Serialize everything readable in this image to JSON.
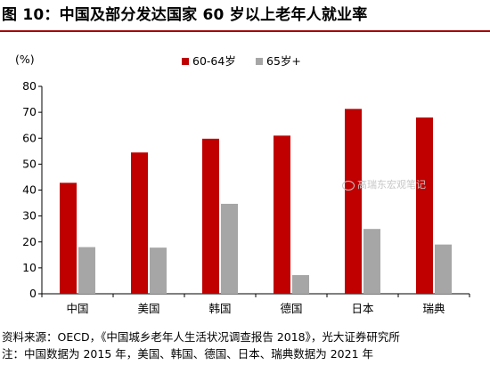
{
  "title": "图 10：中国及部分发达国家 60 岁以上老年人就业率",
  "chart_data": {
    "type": "bar",
    "unit_label": "(%)",
    "categories": [
      "中国",
      "美国",
      "韩国",
      "德国",
      "日本",
      "瑞典"
    ],
    "series": [
      {
        "name": "60-64岁",
        "color": "#c00000",
        "values": [
          42.8,
          54.5,
          59.8,
          61.0,
          71.3,
          68.0
        ]
      },
      {
        "name": "65岁+",
        "color": "#a6a6a6",
        "values": [
          18.0,
          17.8,
          34.7,
          7.2,
          25.0,
          19.0
        ]
      }
    ],
    "ylim": [
      0,
      80
    ],
    "yticks": [
      0,
      10,
      20,
      30,
      40,
      50,
      60,
      70,
      80
    ],
    "grid": false,
    "legend_position": "top-center"
  },
  "footer": {
    "source": "资料来源：OECD，《中国城乡老年人生活状况调查报告 2018》，光大证券研究所",
    "note": "注：中国数据为 2015 年，美国、韩国、德国、日本、瑞典数据为 2021 年"
  },
  "watermark": "高瑞东宏观笔记"
}
